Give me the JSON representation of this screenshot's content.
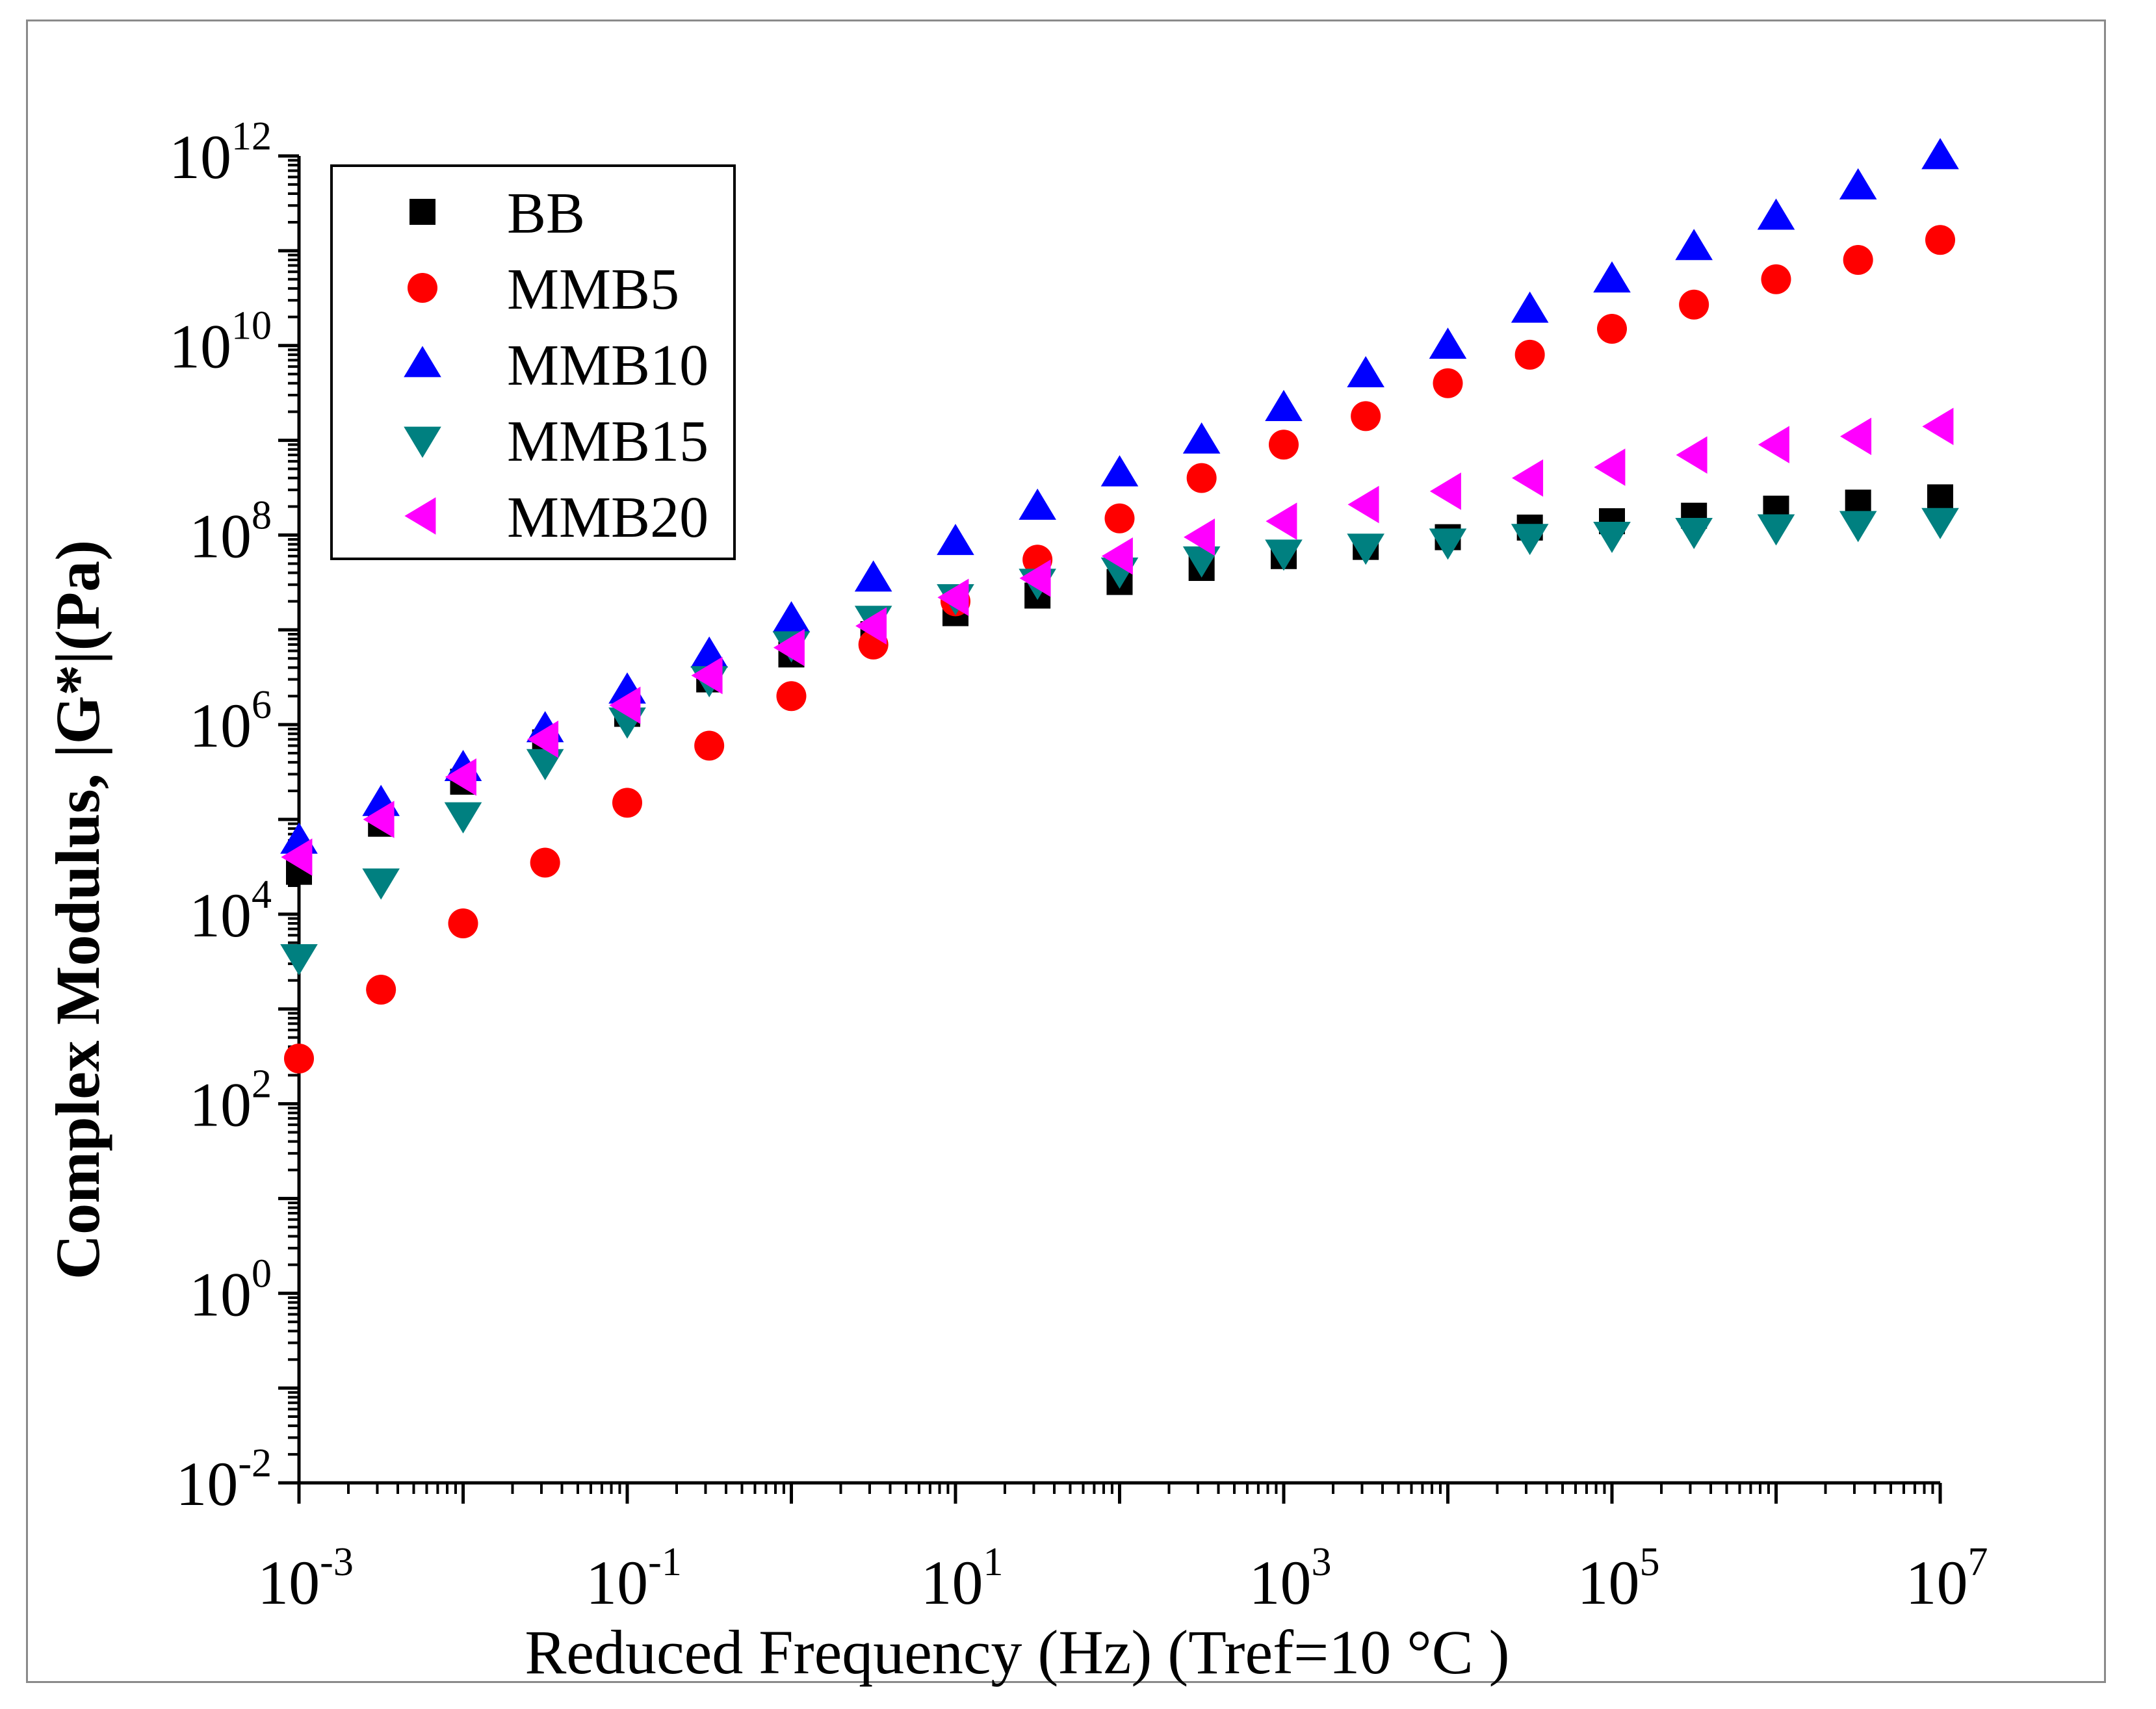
{
  "chart_data": {
    "type": "scatter",
    "title": "",
    "xlabel": "Reduced Frequency (Hz) (Tref=10 °C )",
    "ylabel": "Complex Modulus, |G*|(Pa)",
    "xscale": "log",
    "yscale": "log",
    "xlim": [
      0.001,
      10000000
    ],
    "ylim": [
      0.01,
      1000000000000
    ],
    "grid": false,
    "legend_position": "top-left",
    "x_ticks": [
      {
        "base": "10",
        "exp": "-3"
      },
      {
        "base": "10",
        "exp": "-1"
      },
      {
        "base": "10",
        "exp": "1"
      },
      {
        "base": "10",
        "exp": "3"
      },
      {
        "base": "10",
        "exp": "5"
      },
      {
        "base": "10",
        "exp": "7"
      }
    ],
    "y_ticks": [
      {
        "base": "10",
        "exp": "-2"
      },
      {
        "base": "10",
        "exp": "0"
      },
      {
        "base": "10",
        "exp": "2"
      },
      {
        "base": "10",
        "exp": "4"
      },
      {
        "base": "10",
        "exp": "6"
      },
      {
        "base": "10",
        "exp": "8"
      },
      {
        "base": "10",
        "exp": "10"
      },
      {
        "base": "10",
        "exp": "12"
      }
    ],
    "x": [
      0.001,
      0.00316,
      0.01,
      0.0316,
      0.1,
      0.316,
      1,
      3.16,
      10,
      31.6,
      100,
      316,
      1000,
      3160,
      10000,
      31600,
      100000,
      316000,
      1000000,
      3160000,
      10000000
    ],
    "series": [
      {
        "name": "BB",
        "marker": "square",
        "color": "#000000",
        "values": [
          28000,
          90000,
          250000,
          650000,
          1300000,
          3000000,
          5500000,
          9000000,
          15000000,
          23000000,
          32000000,
          45000000,
          60000000,
          75000000,
          95000000,
          120000000,
          140000000,
          160000000,
          190000000,
          220000000,
          250000000
        ]
      },
      {
        "name": "MMB5",
        "marker": "circle",
        "color": "#ff0000",
        "values": [
          300,
          1600,
          8000,
          35000,
          150000,
          600000,
          2000000,
          7000000,
          20000000,
          55000000,
          150000000,
          400000000,
          900000000,
          1800000000,
          4000000000,
          8000000000,
          15000000000,
          27000000000,
          50000000000,
          80000000000,
          130000000000
        ]
      },
      {
        "name": "MMB10",
        "marker": "triangle-up",
        "color": "#0000ff",
        "values": [
          60000,
          150000,
          350000,
          900000,
          2300000,
          5500000,
          13000000,
          35000000,
          85000000,
          200000000,
          450000000,
          1000000000,
          2200000000,
          5000000000,
          10000000000,
          24000000000,
          50000000000,
          110000000000,
          230000000000,
          480000000000,
          1000000000000
        ]
      },
      {
        "name": "MMB15",
        "marker": "triangle-down",
        "color": "#008080",
        "values": [
          3500,
          22000,
          110000,
          400000,
          1100000,
          3000000,
          7000000,
          13000000,
          22000000,
          32000000,
          42000000,
          55000000,
          65000000,
          75000000,
          85000000,
          95000000,
          100000000,
          110000000,
          120000000,
          130000000,
          140000000
        ]
      },
      {
        "name": "MMB20",
        "marker": "triangle-left",
        "color": "#ff00ff",
        "values": [
          40000,
          100000,
          280000,
          700000,
          1600000,
          3300000,
          6500000,
          11000000,
          22000000,
          35000000,
          60000000,
          95000000,
          140000000,
          210000000,
          290000000,
          400000000,
          520000000,
          700000000,
          900000000,
          1100000000,
          1400000000
        ]
      }
    ]
  }
}
